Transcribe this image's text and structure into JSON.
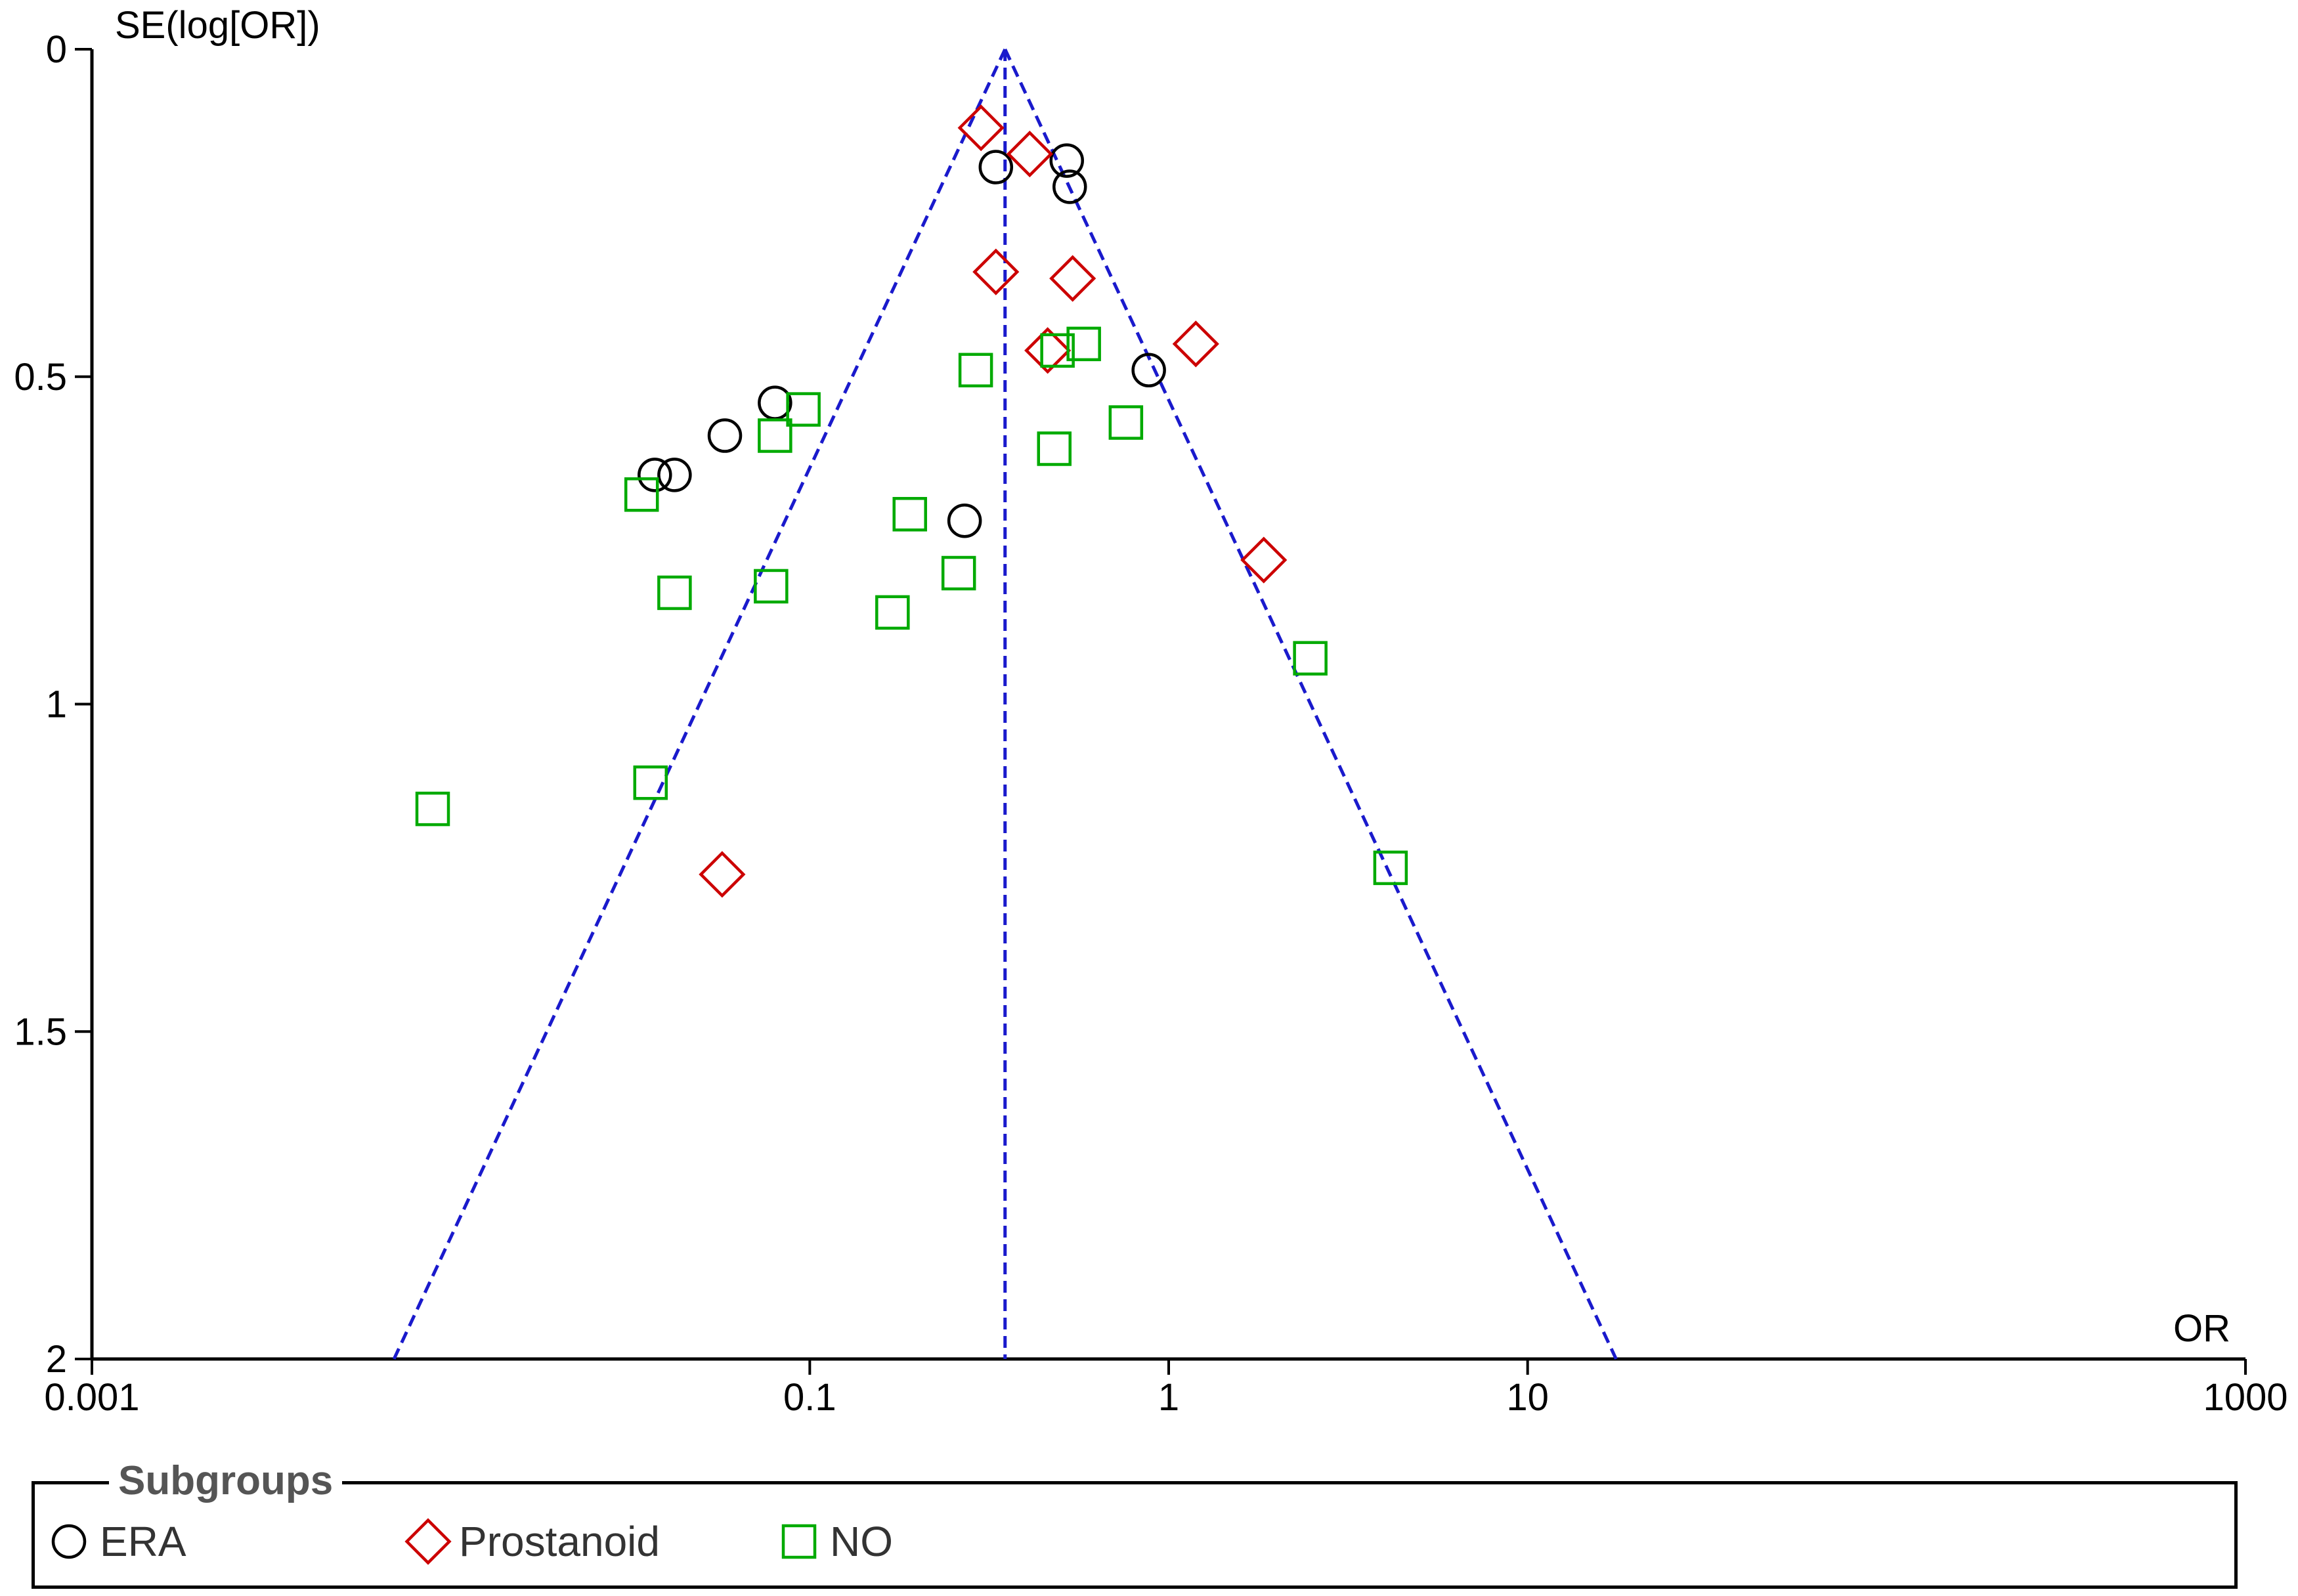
{
  "chart_data": {
    "type": "scatter",
    "title": "",
    "xlabel": "OR",
    "ylabel": "SE(log[OR])",
    "x_scale": "log10",
    "xlim": [
      0.001,
      1000
    ],
    "ylim": [
      0,
      2
    ],
    "y_inverted": true,
    "x_ticks": [
      0.001,
      0.1,
      1,
      10,
      1000
    ],
    "x_tick_labels": [
      "0.001",
      "0.1",
      "1",
      "10",
      "1000"
    ],
    "y_ticks": [
      0,
      0.5,
      1,
      1.5,
      2
    ],
    "y_tick_labels": [
      "0",
      "0.5",
      "1",
      "1.5",
      "2"
    ],
    "pooled_or": 0.35,
    "funnel_limits": "95% pseudo-confidence (dashed)",
    "grid": false,
    "legend_title": "Subgroups",
    "legend_position": "bottom",
    "series": [
      {
        "name": "ERA",
        "marker": "circle",
        "color": "#000000",
        "points": [
          {
            "x": 0.33,
            "y": 0.18
          },
          {
            "x": 0.52,
            "y": 0.17
          },
          {
            "x": 0.53,
            "y": 0.21
          },
          {
            "x": 0.88,
            "y": 0.49
          },
          {
            "x": 0.08,
            "y": 0.54
          },
          {
            "x": 0.058,
            "y": 0.59
          },
          {
            "x": 0.042,
            "y": 0.65
          },
          {
            "x": 0.037,
            "y": 0.65
          },
          {
            "x": 0.27,
            "y": 0.72
          }
        ]
      },
      {
        "name": "Prostanoid",
        "marker": "diamond",
        "color": "#cc0000",
        "points": [
          {
            "x": 0.3,
            "y": 0.12
          },
          {
            "x": 0.41,
            "y": 0.16
          },
          {
            "x": 0.33,
            "y": 0.34
          },
          {
            "x": 0.54,
            "y": 0.35
          },
          {
            "x": 0.46,
            "y": 0.46
          },
          {
            "x": 1.19,
            "y": 0.45
          },
          {
            "x": 1.84,
            "y": 0.78
          },
          {
            "x": 0.057,
            "y": 1.26
          }
        ]
      },
      {
        "name": "NO",
        "marker": "square",
        "color": "#00aa00",
        "points": [
          {
            "x": 0.49,
            "y": 0.46
          },
          {
            "x": 0.58,
            "y": 0.45
          },
          {
            "x": 0.29,
            "y": 0.49
          },
          {
            "x": 0.096,
            "y": 0.55
          },
          {
            "x": 0.08,
            "y": 0.59
          },
          {
            "x": 0.76,
            "y": 0.57
          },
          {
            "x": 0.48,
            "y": 0.61
          },
          {
            "x": 0.034,
            "y": 0.68
          },
          {
            "x": 0.19,
            "y": 0.71
          },
          {
            "x": 0.26,
            "y": 0.8
          },
          {
            "x": 0.078,
            "y": 0.82
          },
          {
            "x": 0.042,
            "y": 0.83
          },
          {
            "x": 0.17,
            "y": 0.86
          },
          {
            "x": 2.48,
            "y": 0.93
          },
          {
            "x": 0.036,
            "y": 1.12
          },
          {
            "x": 0.0089,
            "y": 1.16
          },
          {
            "x": 4.15,
            "y": 1.25
          }
        ]
      }
    ]
  }
}
